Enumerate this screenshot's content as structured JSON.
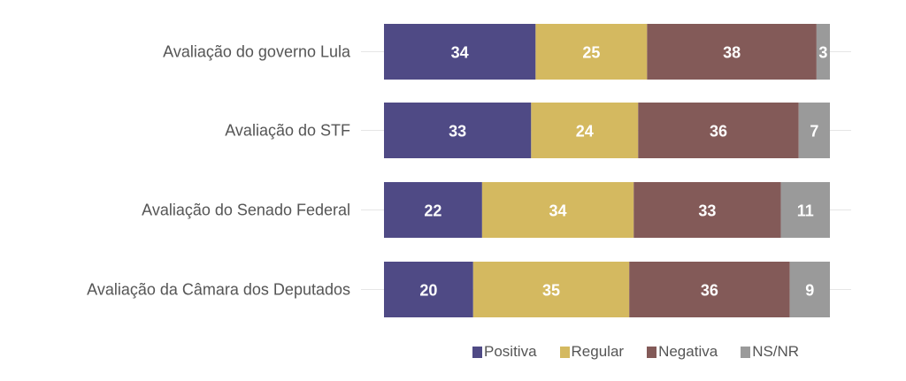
{
  "chart_data": {
    "type": "bar",
    "orientation": "horizontal",
    "stacked": true,
    "title": "",
    "xlabel": "",
    "ylabel": "",
    "xlim": [
      0,
      100
    ],
    "grid": false,
    "legend_position": "bottom-right",
    "categories": [
      "Avaliação do governo Lula",
      "Avaliação do STF",
      "Avaliação do Senado Federal",
      "Avaliação da Câmara dos Deputados"
    ],
    "series": [
      {
        "name": "Positiva",
        "color": "#4f4a85",
        "values": [
          34,
          33,
          22,
          20
        ]
      },
      {
        "name": "Regular",
        "color": "#d4b960",
        "values": [
          25,
          24,
          34,
          35
        ]
      },
      {
        "name": "Negativa",
        "color": "#835a58",
        "values": [
          38,
          36,
          33,
          36
        ]
      },
      {
        "name": "NS/NR",
        "color": "#9a9a9a",
        "values": [
          3,
          7,
          11,
          9
        ]
      }
    ]
  }
}
